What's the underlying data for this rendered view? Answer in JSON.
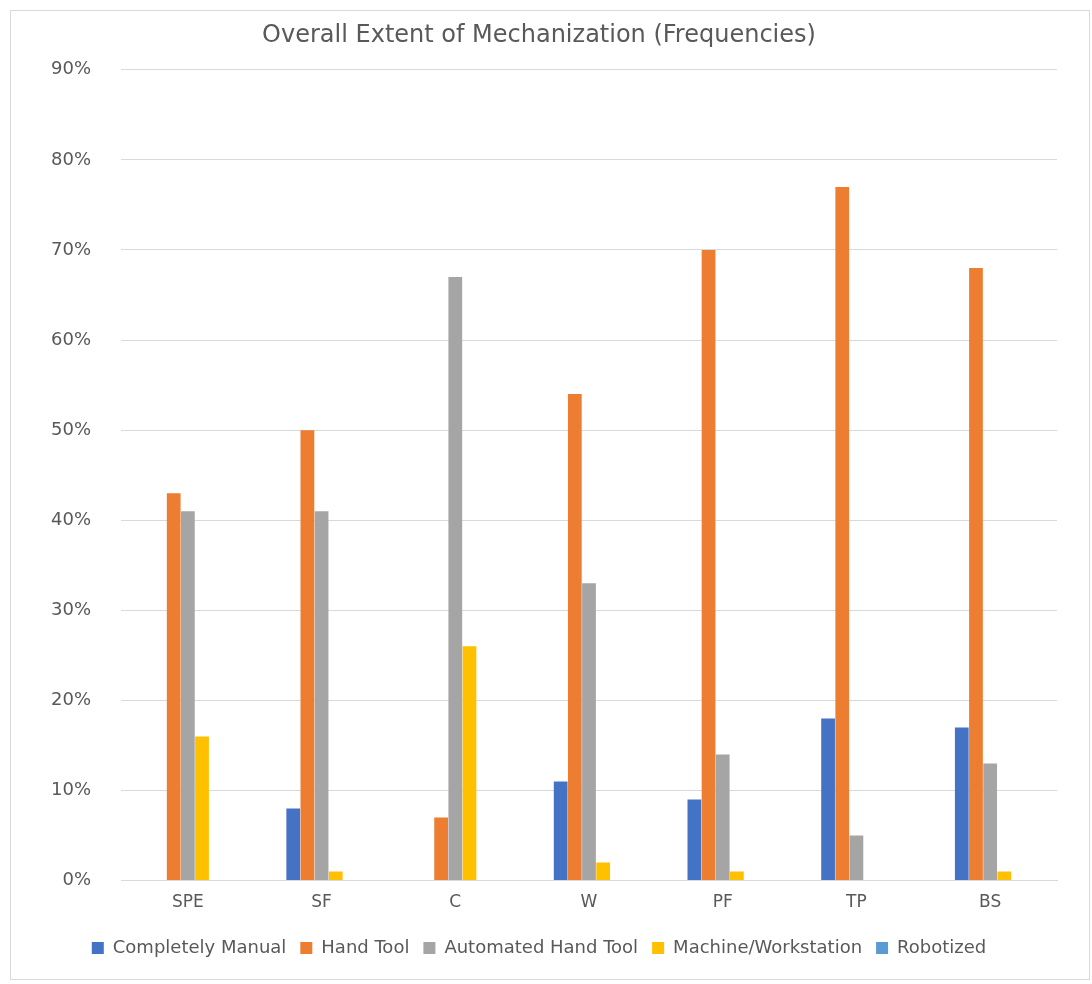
{
  "chart_data": {
    "type": "bar",
    "title": "Overall Extent of Mechanization (Frequencies)",
    "categories": [
      "SPE",
      "SF",
      "C",
      "W",
      "PF",
      "TP",
      "BS"
    ],
    "series": [
      {
        "name": "Completely Manual",
        "color": "#4472c4",
        "values": [
          0,
          8,
          0,
          11,
          9,
          18,
          17
        ]
      },
      {
        "name": "Hand Tool",
        "color": "#ed7d31",
        "values": [
          43,
          50,
          7,
          54,
          70,
          77,
          68
        ]
      },
      {
        "name": "Automated Hand Tool",
        "color": "#a5a5a5",
        "values": [
          41,
          41,
          67,
          33,
          14,
          5,
          13
        ]
      },
      {
        "name": "Machine/Workstation",
        "color": "#ffc000",
        "values": [
          16,
          1,
          26,
          2,
          1,
          0,
          1
        ]
      },
      {
        "name": "Robotized",
        "color": "#5b9bd5",
        "values": [
          0,
          0,
          0,
          0,
          0,
          0,
          0
        ]
      }
    ],
    "ylim": [
      0,
      90
    ],
    "yticks": [
      {
        "value": 0,
        "label": "0%"
      },
      {
        "value": 10,
        "label": "10%"
      },
      {
        "value": 20,
        "label": "20%"
      },
      {
        "value": 30,
        "label": "30%"
      },
      {
        "value": 40,
        "label": "40%"
      },
      {
        "value": 50,
        "label": "50%"
      },
      {
        "value": 60,
        "label": "60%"
      },
      {
        "value": 70,
        "label": "70%"
      },
      {
        "value": 80,
        "label": "80%"
      },
      {
        "value": 90,
        "label": "90%"
      }
    ],
    "grid": "y",
    "legend": "bottom"
  }
}
